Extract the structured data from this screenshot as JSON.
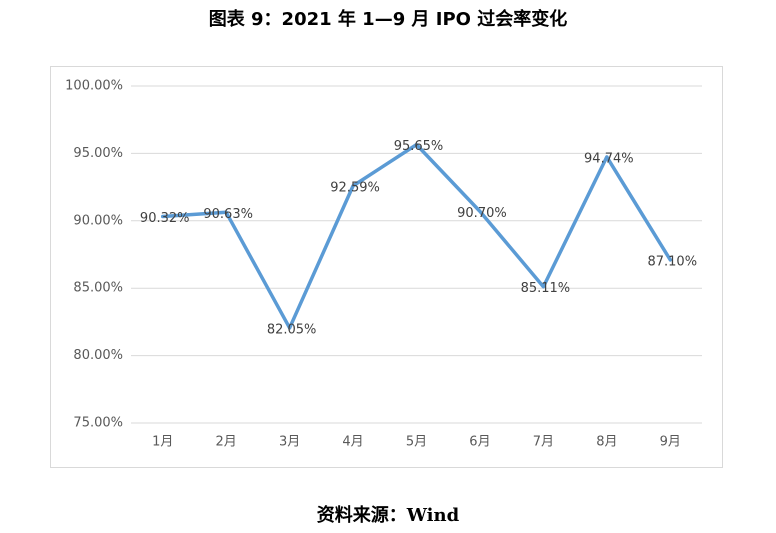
{
  "chart_data": {
    "type": "line",
    "title": "图表 9：2021 年 1—9 月 IPO 过会率变化",
    "source": "资料来源：Wind",
    "categories": [
      "1月",
      "2月",
      "3月",
      "4月",
      "5月",
      "6月",
      "7月",
      "8月",
      "9月"
    ],
    "series": [
      {
        "color": "#5b9bd5",
        "values": [
          90.32,
          90.63,
          82.05,
          92.59,
          95.65,
          90.7,
          85.11,
          94.74,
          87.1
        ],
        "value_labels": [
          "90.32%",
          "90.63%",
          "82.05%",
          "92.59%",
          "95.65%",
          "90.70%",
          "85.11%",
          "94.74%",
          "87.10%"
        ]
      }
    ],
    "ylim": [
      75,
      100
    ],
    "yticks": [
      {
        "value": 75,
        "label": "75.00%"
      },
      {
        "value": 80,
        "label": "80.00%"
      },
      {
        "value": 85,
        "label": "85.00%"
      },
      {
        "value": 90,
        "label": "90.00%"
      },
      {
        "value": 95,
        "label": "95.00%"
      },
      {
        "value": 100,
        "label": "100.00%"
      }
    ],
    "grid": true
  }
}
